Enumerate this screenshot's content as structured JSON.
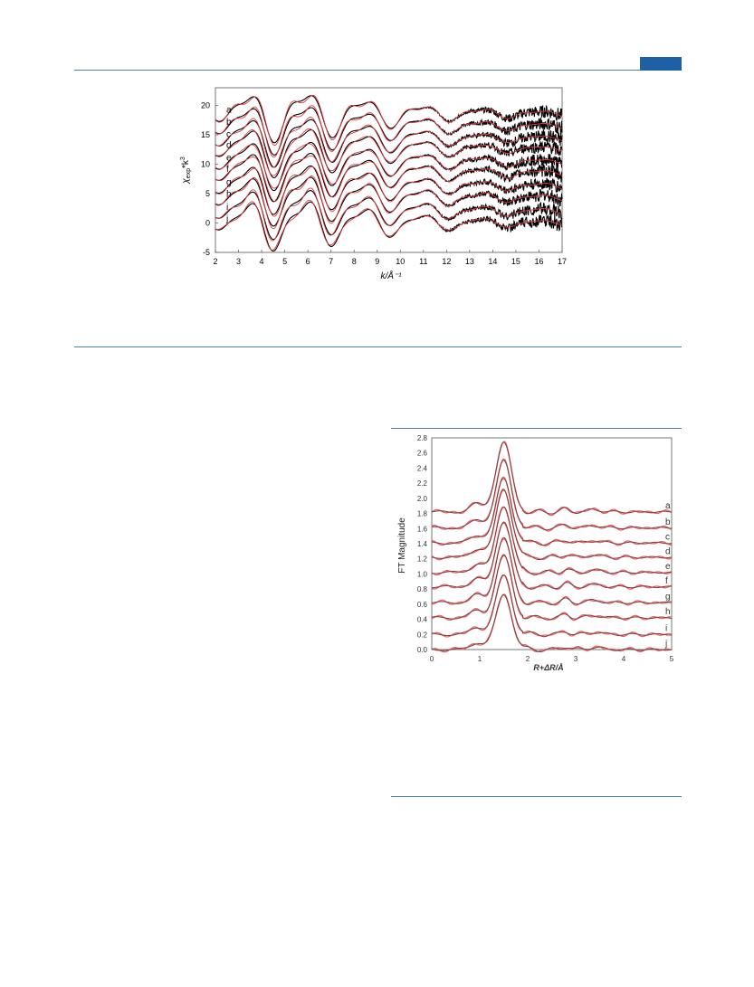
{
  "page": {
    "accent_color": "#1f5fa6",
    "rule_color": "#4a7fb5"
  },
  "chart_data": [
    {
      "type": "line",
      "title": "",
      "xlabel": "k/Å⁻¹",
      "ylabel_main": "χ",
      "ylabel_sub": "exp",
      "ylabel_tail": "*k",
      "ylabel_sup": "3",
      "xlim": [
        2,
        17
      ],
      "ylim": [
        -5,
        23
      ],
      "x_ticks": [
        2,
        3,
        4,
        5,
        6,
        7,
        8,
        9,
        10,
        11,
        12,
        13,
        14,
        15,
        16,
        17
      ],
      "y_ticks": [
        -5,
        0,
        5,
        10,
        15,
        20
      ],
      "grid": false,
      "legend": "none",
      "series_labels": [
        "a",
        "b",
        "c",
        "d",
        "e",
        "f",
        "g",
        "h",
        "i",
        "j"
      ],
      "offsets": [
        18.6,
        16.5,
        14.4,
        12.6,
        10.4,
        8.5,
        6.3,
        4.3,
        2.0,
        0.0
      ],
      "data_color": "#000000",
      "fit_color": "#e0393e",
      "envelope_k": [
        2,
        3,
        4,
        5,
        6,
        7,
        8,
        9,
        10,
        11,
        12,
        13,
        14,
        15,
        16,
        17
      ],
      "envelope_amplitude": [
        0.8,
        2.8,
        3.6,
        3.8,
        3.6,
        3.1,
        2.6,
        2.1,
        1.7,
        1.3,
        1.05,
        0.85,
        0.7,
        0.55,
        0.45,
        0.4
      ],
      "noise_amplitude": [
        0,
        0,
        0,
        0,
        0,
        0,
        0,
        0,
        0,
        0.08,
        0.2,
        0.35,
        0.55,
        0.8,
        1.05,
        1.25
      ]
    },
    {
      "type": "line",
      "title": "",
      "xlabel": "R+ΔR/Å",
      "ylabel": "FT Magnitude",
      "xlim": [
        0,
        5
      ],
      "ylim": [
        0,
        2.8
      ],
      "x_ticks": [
        0,
        1,
        2,
        3,
        4,
        5
      ],
      "y_ticks": [
        0.0,
        0.2,
        0.4,
        0.6,
        0.8,
        1.0,
        1.2,
        1.4,
        1.6,
        1.8,
        2.0,
        2.2,
        2.4,
        2.6,
        2.8
      ],
      "y_tick_labels": [
        "0.0",
        "0.2",
        "0.4",
        "0.6",
        "0.8",
        "1.0",
        "1.2",
        "1.4",
        "1.6",
        "1.8",
        "2.0",
        "2.2",
        "2.4",
        "2.6",
        "2.8"
      ],
      "grid": false,
      "legend": "none",
      "series_labels": [
        "a",
        "b",
        "c",
        "d",
        "e",
        "f",
        "g",
        "h",
        "i",
        "j"
      ],
      "offsets": [
        1.82,
        1.61,
        1.41,
        1.22,
        1.02,
        0.83,
        0.62,
        0.42,
        0.2,
        0.0
      ],
      "peak_r": 1.5,
      "peak_heights": [
        0.91,
        0.88,
        0.85,
        0.9,
        0.88,
        0.86,
        0.85,
        0.82,
        0.78,
        0.73
      ],
      "data_color": "#8a4040",
      "fit_color": "#e8636a"
    }
  ]
}
